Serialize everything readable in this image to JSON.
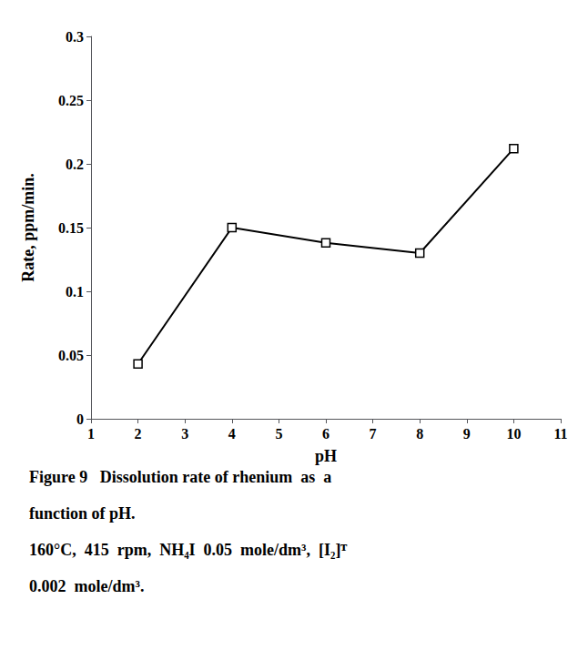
{
  "chart_data": {
    "type": "line",
    "x": [
      2,
      4,
      6,
      8,
      10
    ],
    "values": [
      0.043,
      0.15,
      0.138,
      0.13,
      0.212
    ],
    "xlabel": "pH",
    "ylabel": "Rate, ppm/min.",
    "xlim": [
      1,
      11
    ],
    "xticks": [
      1,
      2,
      3,
      4,
      5,
      6,
      7,
      8,
      9,
      10,
      11
    ],
    "ylim": [
      0,
      0.3
    ],
    "yticks": [
      0,
      0.05,
      0.1,
      0.15,
      0.2,
      0.25,
      0.3
    ],
    "color": "#000000",
    "marker": "square",
    "grid": false,
    "annotations": [
      "Figure 9   Dissolution rate of rhenium  as  a",
      "function of pH.",
      "160°C,  415  rpm,  NH₄I  0.05  mole/dm³,  [I₂]ᵀ",
      "0.002  mole/dm³."
    ]
  }
}
